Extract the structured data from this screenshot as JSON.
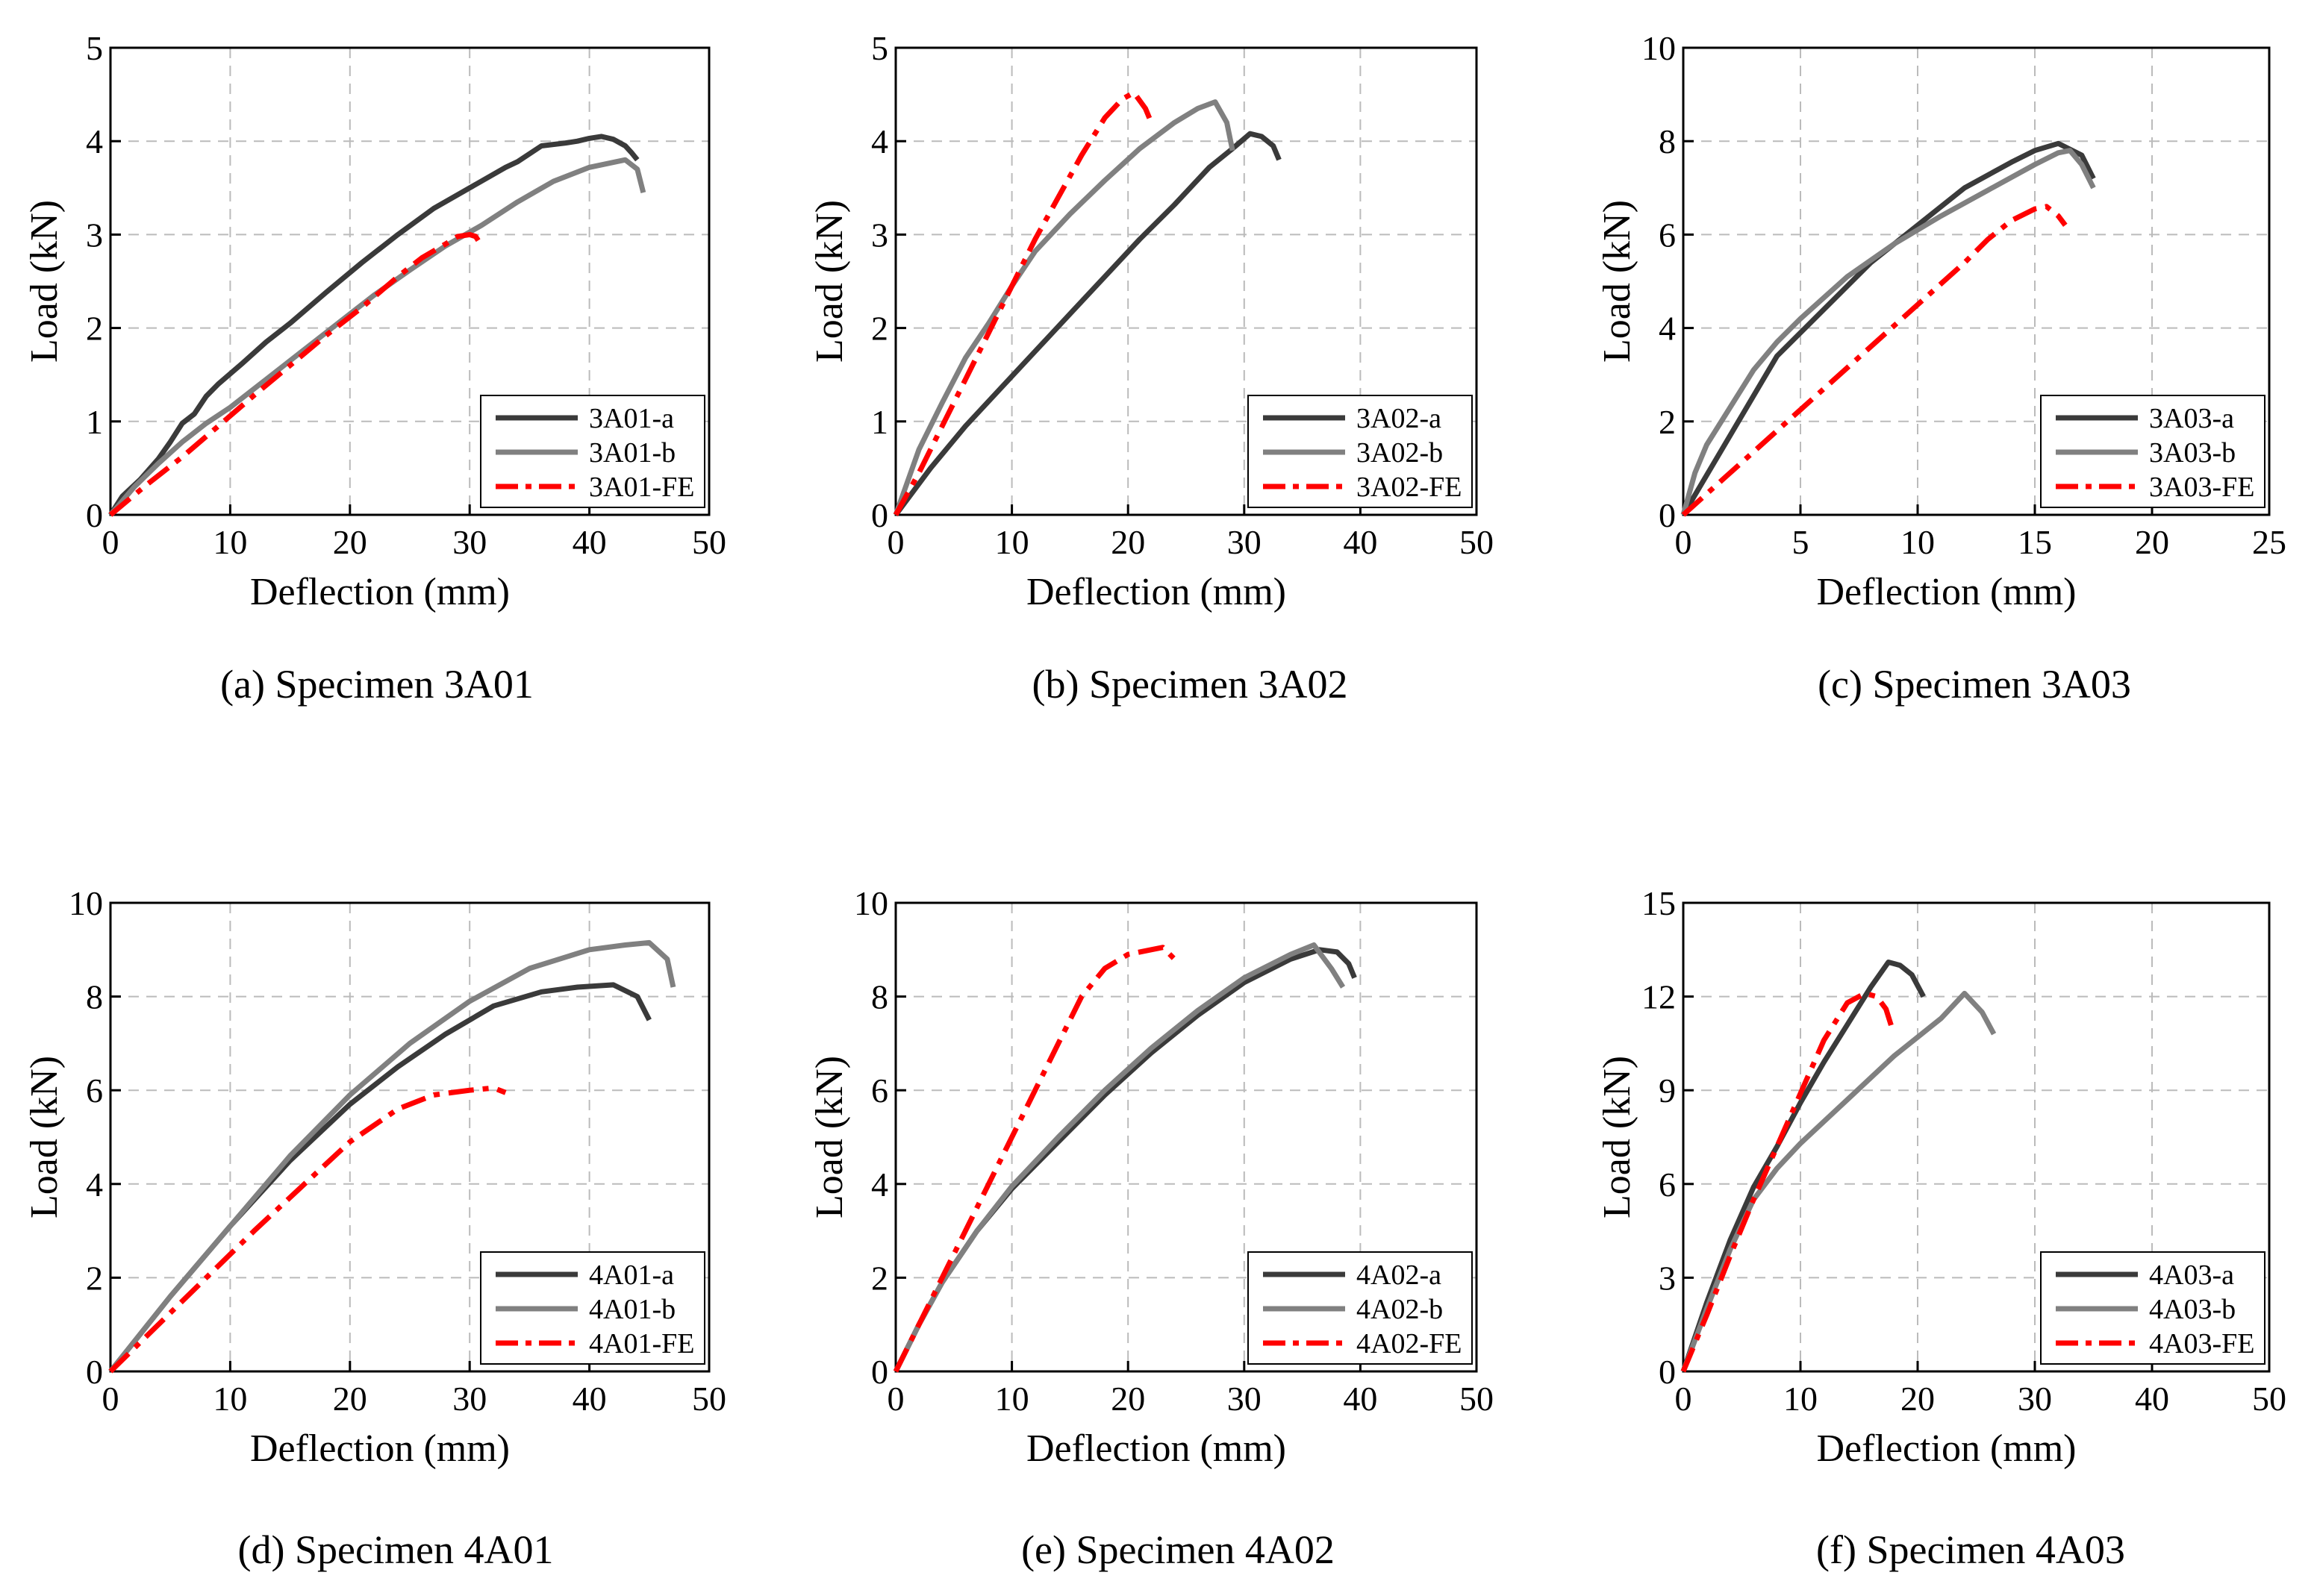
{
  "chart_data": [
    {
      "type": "line",
      "caption": "(a) Specimen 3A01",
      "xlabel": "Deflection (mm)",
      "ylabel": "Load (kN)",
      "xlim": [
        0,
        50
      ],
      "ylim": [
        0,
        5
      ],
      "xticks": [
        "0",
        "10",
        "20",
        "30",
        "40",
        "50"
      ],
      "yticks": [
        "0",
        "1",
        "2",
        "3",
        "4",
        "5"
      ],
      "grid": true,
      "legend_position": "bottom-right",
      "series": [
        {
          "name": "3A01-a",
          "color": "#3a3a3a",
          "style": "solid",
          "x": [
            0,
            1,
            2.5,
            4,
            5,
            6,
            7,
            8,
            9,
            11,
            13,
            15,
            18,
            21,
            24,
            27,
            30,
            33,
            34,
            36,
            38,
            39,
            40,
            41,
            42,
            43,
            43.5,
            44
          ],
          "y": [
            0,
            0.2,
            0.38,
            0.6,
            0.78,
            0.98,
            1.08,
            1.27,
            1.4,
            1.62,
            1.85,
            2.05,
            2.38,
            2.7,
            3.0,
            3.28,
            3.5,
            3.72,
            3.78,
            3.95,
            3.98,
            4.0,
            4.03,
            4.05,
            4.02,
            3.95,
            3.88,
            3.8
          ]
        },
        {
          "name": "3A01-b",
          "color": "#808080",
          "style": "solid",
          "x": [
            0,
            2,
            4,
            6,
            8,
            10,
            13,
            16,
            19,
            22,
            25,
            28,
            31,
            34,
            37,
            40,
            43,
            44,
            44.5
          ],
          "y": [
            0,
            0.3,
            0.55,
            0.78,
            0.98,
            1.15,
            1.45,
            1.75,
            2.05,
            2.35,
            2.62,
            2.88,
            3.1,
            3.35,
            3.57,
            3.72,
            3.8,
            3.7,
            3.45
          ]
        },
        {
          "name": "3A01-FE",
          "color": "#ff0000",
          "style": "dashdot",
          "x": [
            0,
            3,
            6,
            9,
            12,
            15,
            18,
            21,
            24,
            26,
            28,
            29,
            30,
            30.5,
            31
          ],
          "y": [
            0,
            0.32,
            0.62,
            0.95,
            1.28,
            1.6,
            1.92,
            2.22,
            2.55,
            2.75,
            2.9,
            2.98,
            3.0,
            2.98,
            2.88
          ]
        }
      ]
    },
    {
      "type": "line",
      "caption": "(b) Specimen 3A02",
      "xlabel": "Deflection (mm)",
      "ylabel": "Load (kN)",
      "xlim": [
        0,
        50
      ],
      "ylim": [
        0,
        5
      ],
      "xticks": [
        "0",
        "10",
        "20",
        "30",
        "40",
        "50"
      ],
      "yticks": [
        "0",
        "1",
        "2",
        "3",
        "4",
        "5"
      ],
      "grid": true,
      "legend_position": "bottom-right",
      "series": [
        {
          "name": "3A02-a",
          "color": "#3a3a3a",
          "style": "solid",
          "x": [
            0,
            3,
            6,
            9,
            12,
            15,
            18,
            21,
            24,
            27,
            29,
            30.5,
            31.5,
            32.5,
            33
          ],
          "y": [
            0,
            0.5,
            0.95,
            1.35,
            1.75,
            2.15,
            2.55,
            2.95,
            3.32,
            3.72,
            3.92,
            4.08,
            4.05,
            3.95,
            3.8
          ]
        },
        {
          "name": "3A02-b",
          "color": "#808080",
          "style": "solid",
          "x": [
            0,
            2,
            4,
            6,
            8,
            10,
            12,
            15,
            18,
            21,
            24,
            26,
            27.5,
            28.5,
            29
          ],
          "y": [
            0,
            0.7,
            1.2,
            1.68,
            2.05,
            2.45,
            2.82,
            3.22,
            3.58,
            3.92,
            4.2,
            4.35,
            4.42,
            4.2,
            3.9
          ]
        },
        {
          "name": "3A02-FE",
          "color": "#ff0000",
          "style": "dashdot",
          "x": [
            0,
            2,
            4,
            6,
            8,
            10,
            12,
            14,
            16,
            18,
            19.5,
            20.5,
            21.5,
            22
          ],
          "y": [
            0,
            0.45,
            0.95,
            1.45,
            1.95,
            2.45,
            2.95,
            3.4,
            3.85,
            4.25,
            4.45,
            4.52,
            4.35,
            4.2
          ]
        }
      ]
    },
    {
      "type": "line",
      "caption": "(c) Specimen 3A03",
      "xlabel": "Deflection (mm)",
      "ylabel": "Load (kN)",
      "xlim": [
        0,
        25
      ],
      "ylim": [
        0,
        10
      ],
      "xticks": [
        "0",
        "5",
        "10",
        "15",
        "20",
        "25"
      ],
      "yticks": [
        "0",
        "2",
        "4",
        "6",
        "8",
        "10"
      ],
      "grid": true,
      "legend_position": "bottom-right",
      "series": [
        {
          "name": "3A03-a",
          "color": "#3a3a3a",
          "style": "solid",
          "x": [
            0,
            2,
            4,
            6,
            8,
            10,
            12,
            14,
            15,
            16,
            17,
            17.5
          ],
          "y": [
            0,
            1.7,
            3.4,
            4.4,
            5.4,
            6.2,
            7.0,
            7.55,
            7.8,
            7.95,
            7.7,
            7.2
          ]
        },
        {
          "name": "3A03-b",
          "color": "#808080",
          "style": "solid",
          "x": [
            0,
            0.5,
            1,
            2,
            3,
            4,
            5,
            7,
            9,
            11,
            13,
            15,
            16,
            16.5,
            17,
            17.5
          ],
          "y": [
            0,
            0.9,
            1.5,
            2.3,
            3.1,
            3.7,
            4.2,
            5.1,
            5.8,
            6.4,
            6.95,
            7.5,
            7.75,
            7.8,
            7.5,
            7.0
          ]
        },
        {
          "name": "3A03-FE",
          "color": "#ff0000",
          "style": "dashdot",
          "x": [
            0,
            2,
            4,
            6,
            8,
            10,
            12,
            13,
            14,
            15,
            15.5,
            16,
            16.3
          ],
          "y": [
            0,
            0.9,
            1.8,
            2.7,
            3.6,
            4.5,
            5.4,
            5.9,
            6.3,
            6.55,
            6.6,
            6.4,
            6.2
          ]
        }
      ]
    },
    {
      "type": "line",
      "caption": "(d) Specimen 4A01",
      "xlabel": "Deflection (mm)",
      "ylabel": "Load (kN)",
      "xlim": [
        0,
        50
      ],
      "ylim": [
        0,
        10
      ],
      "xticks": [
        "0",
        "10",
        "20",
        "30",
        "40",
        "50"
      ],
      "yticks": [
        "0",
        "2",
        "4",
        "6",
        "8",
        "10"
      ],
      "grid": true,
      "legend_position": "bottom-right",
      "series": [
        {
          "name": "4A01-a",
          "color": "#3a3a3a",
          "style": "solid",
          "x": [
            0,
            5,
            10,
            15,
            20,
            24,
            28,
            32,
            36,
            39,
            42,
            44,
            45
          ],
          "y": [
            0,
            1.6,
            3.1,
            4.5,
            5.7,
            6.5,
            7.2,
            7.8,
            8.1,
            8.2,
            8.25,
            8.0,
            7.5
          ]
        },
        {
          "name": "4A01-b",
          "color": "#808080",
          "style": "solid",
          "x": [
            0,
            5,
            10,
            15,
            20,
            25,
            30,
            35,
            40,
            43,
            45,
            46.5,
            47
          ],
          "y": [
            0,
            1.6,
            3.1,
            4.6,
            5.9,
            7.0,
            7.9,
            8.6,
            9.0,
            9.1,
            9.15,
            8.8,
            8.2
          ]
        },
        {
          "name": "4A01-FE",
          "color": "#ff0000",
          "style": "dashdot",
          "x": [
            0,
            4,
            8,
            12,
            16,
            20,
            24,
            27,
            30,
            32,
            33
          ],
          "y": [
            0,
            1.0,
            2.0,
            3.0,
            3.95,
            4.9,
            5.6,
            5.9,
            6.0,
            6.05,
            5.95
          ]
        }
      ]
    },
    {
      "type": "line",
      "caption": "(e) Specimen 4A02",
      "xlabel": "Deflection (mm)",
      "ylabel": "Load (kN)",
      "xlim": [
        0,
        50
      ],
      "ylim": [
        0,
        10
      ],
      "xticks": [
        "0",
        "10",
        "20",
        "30",
        "40",
        "50"
      ],
      "yticks": [
        "0",
        "2",
        "4",
        "6",
        "8",
        "10"
      ],
      "grid": true,
      "legend_position": "bottom-right",
      "series": [
        {
          "name": "4A02-a",
          "color": "#3a3a3a",
          "style": "solid",
          "x": [
            0,
            2,
            4,
            7,
            10,
            14,
            18,
            22,
            26,
            30,
            34,
            36.5,
            38,
            39,
            39.5
          ],
          "y": [
            0,
            1.0,
            1.9,
            3.0,
            3.9,
            4.9,
            5.9,
            6.8,
            7.6,
            8.3,
            8.8,
            9.0,
            8.95,
            8.7,
            8.4
          ]
        },
        {
          "name": "4A02-b",
          "color": "#808080",
          "style": "solid",
          "x": [
            0,
            2,
            4,
            7,
            10,
            14,
            18,
            22,
            26,
            30,
            34,
            36,
            37.5,
            38.5
          ],
          "y": [
            0,
            1.0,
            1.9,
            3.0,
            3.95,
            5.0,
            6.0,
            6.9,
            7.7,
            8.4,
            8.9,
            9.1,
            8.6,
            8.2
          ]
        },
        {
          "name": "4A02-FE",
          "color": "#ff0000",
          "style": "dashdot",
          "x": [
            0,
            2,
            4,
            6,
            8,
            10,
            12,
            14,
            16,
            18,
            20,
            22,
            23,
            24
          ],
          "y": [
            0,
            1.0,
            2.0,
            3.0,
            4.0,
            5.0,
            6.0,
            7.0,
            8.0,
            8.6,
            8.9,
            9.0,
            9.05,
            8.8
          ]
        }
      ]
    },
    {
      "type": "line",
      "caption": "(f) Specimen 4A03",
      "xlabel": "Deflection (mm)",
      "ylabel": "Load (kN)",
      "xlim": [
        0,
        50
      ],
      "ylim": [
        0,
        15
      ],
      "xticks": [
        "0",
        "10",
        "20",
        "30",
        "40",
        "50"
      ],
      "yticks": [
        "0",
        "3",
        "6",
        "9",
        "12",
        "15"
      ],
      "grid": true,
      "legend_position": "bottom-right",
      "series": [
        {
          "name": "4A03-a",
          "color": "#3a3a3a",
          "style": "solid",
          "x": [
            0,
            2,
            4,
            6,
            8,
            10,
            12,
            14,
            16,
            17.5,
            18.5,
            19.5,
            20.5
          ],
          "y": [
            0,
            2.2,
            4.2,
            5.9,
            7.2,
            8.6,
            9.9,
            11.1,
            12.3,
            13.1,
            13.0,
            12.7,
            12.0
          ]
        },
        {
          "name": "4A03-b",
          "color": "#808080",
          "style": "solid",
          "x": [
            0,
            2,
            4,
            6,
            8,
            10,
            14,
            18,
            22,
            24,
            25.5,
            26.5
          ],
          "y": [
            0,
            2.0,
            3.9,
            5.5,
            6.5,
            7.3,
            8.7,
            10.1,
            11.3,
            12.1,
            11.5,
            10.8
          ]
        },
        {
          "name": "4A03-FE",
          "color": "#ff0000",
          "style": "dashdot",
          "x": [
            0,
            2,
            4,
            6,
            8,
            10,
            12,
            14,
            15.5,
            16.5,
            17.3,
            17.8
          ],
          "y": [
            0,
            1.8,
            3.7,
            5.5,
            7.2,
            8.9,
            10.6,
            11.8,
            12.1,
            12.0,
            11.6,
            11.0
          ]
        }
      ]
    }
  ]
}
